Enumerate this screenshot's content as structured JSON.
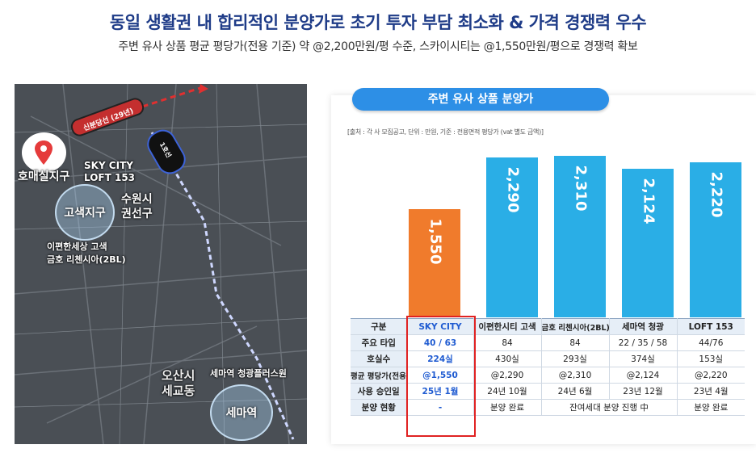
{
  "header": {
    "title": "동일 생활권 내 합리적인 분양가로 초기 투자 부담 최소화 & 가격 경쟁력 우수",
    "subtitle": "주변 유사 상품 평균 평당가(전용 기준) 약 @2,200만원/평 수준, 스카이시티는 @1,550만원/평으로 경쟁력 확보"
  },
  "map": {
    "route_label": "신분당선 (29년)",
    "line_label": "1호선",
    "labels": {
      "homae": "호매실지구",
      "skycity": "SKY CITY\nLOFT 153",
      "gosaek": "고색지구",
      "suwon": "수원시\n권선구",
      "complex1": "이편한세상 고색\n금호 리첸시아(2BL)",
      "osan": "오산시\n세교동",
      "semaho": "세마역 청광플러스원",
      "semaeok": "세마역"
    },
    "colors": {
      "route": "#e03030",
      "line1": "#3d63d8"
    }
  },
  "panel": {
    "title": "주변 유사 상품 분양가",
    "source": "[출처 : 각 사 모집공고, 단위 : 만원, 기준 : 전용면적 평당가 (vat 별도 금액)]"
  },
  "chart_data": {
    "type": "bar",
    "categories": [
      "SKY CITY",
      "이편한시티 고색",
      "금호 리첸시아(2BL)",
      "세마역 청광",
      "LOFT 153"
    ],
    "values": [
      1550,
      2290,
      2310,
      2124,
      2220
    ],
    "value_labels": [
      "1,550",
      "2,290",
      "2,310",
      "2,124",
      "2,220"
    ],
    "colors": [
      "#f07b2c",
      "#2aaee6",
      "#2aaee6",
      "#2aaee6",
      "#2aaee6"
    ],
    "ylim": [
      0,
      2400
    ]
  },
  "table": {
    "headers": [
      "구분",
      "SKY CITY",
      "이편한시티 고색",
      "금호 리첸시아(2BL)",
      "세마역 청광",
      "LOFT 153"
    ],
    "rows": [
      {
        "label": "주요 타입",
        "cells": [
          "40 / 63",
          "84",
          "84",
          "22 / 35 / 58",
          "44/76"
        ]
      },
      {
        "label": "호실수",
        "cells": [
          "224실",
          "430실",
          "293실",
          "374실",
          "153실"
        ]
      },
      {
        "label": "평균 평당가(전용)",
        "cells": [
          "@1,550",
          "@2,290",
          "@2,310",
          "@2,124",
          "@2,220"
        ]
      },
      {
        "label": "사용 승인일",
        "cells": [
          "25년 1월",
          "24년 10월",
          "24년 6월",
          "23년 12월",
          "23년 4월"
        ]
      }
    ],
    "last_row": {
      "label": "분양 현황",
      "sky": "-",
      "first": "분양 완료",
      "middle": "잔여세대 분양 진행 中",
      "last": "분양 완료"
    }
  }
}
